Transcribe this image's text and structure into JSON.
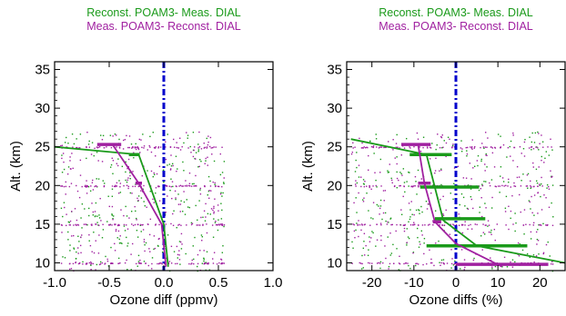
{
  "chart_data": [
    {
      "type": "scatter",
      "legend": [
        {
          "label": "Reconst. POAM3- Meas. DIAL",
          "color": "#1a9a1a"
        },
        {
          "label": "Meas. POAM3- Reconst. DIAL",
          "color": "#a020a0"
        }
      ],
      "xlabel": "Ozone diff (ppmv)",
      "ylabel": "Alt. (km)",
      "xlim": [
        -1.0,
        1.0
      ],
      "ylim": [
        9,
        36
      ],
      "xticks": [
        -1.0,
        -0.5,
        0.0,
        0.5,
        1.0
      ],
      "xtick_labels": [
        "-1.0",
        "-0.5",
        "0.0",
        "0.5",
        "1.0"
      ],
      "yticks": [
        10,
        15,
        20,
        25,
        30,
        35
      ],
      "ytick_labels": [
        "10",
        "15",
        "20",
        "25",
        "30",
        "35"
      ],
      "zero_line": 0.0,
      "series": [
        {
          "name": "Reconst. POAM3- Meas. DIAL",
          "color": "#1a9a1a",
          "profile": [
            {
              "x": 0.04,
              "y": 9.5
            },
            {
              "x": 0.0,
              "y": 15
            },
            {
              "x": -0.23,
              "y": 24
            },
            {
              "x": -1.0,
              "y": 25
            }
          ],
          "errorbars": [
            {
              "y": 24,
              "x": -0.27,
              "half": 0.05
            }
          ],
          "scatter_x_range": [
            -0.95,
            0.55
          ],
          "scatter_y_range": [
            9,
            27
          ]
        },
        {
          "name": "Meas. POAM3- Reconst. DIAL",
          "color": "#a020a0",
          "profile": [
            {
              "x": 0.02,
              "y": 9.5
            },
            {
              "x": -0.02,
              "y": 15
            },
            {
              "x": -0.23,
              "y": 20.3
            },
            {
              "x": -0.47,
              "y": 25.3
            }
          ],
          "errorbars": [
            {
              "y": 25.3,
              "x": -0.5,
              "half": 0.11
            },
            {
              "y": 20.3,
              "x": -0.23,
              "half": 0.03
            }
          ],
          "scatter_x_range": [
            -0.95,
            0.55
          ],
          "scatter_y_range": [
            9,
            27
          ],
          "dense_rows": [
            10,
            15,
            20,
            25
          ]
        }
      ]
    },
    {
      "type": "scatter",
      "legend": [
        {
          "label": "Reconst. POAM3- Meas. DIAL",
          "color": "#1a9a1a"
        },
        {
          "label": "Meas. POAM3- Reconst. DIAL",
          "color": "#a020a0"
        }
      ],
      "xlabel": "Ozone diffs (%)",
      "ylabel": "Alt. (km)",
      "xlim": [
        -26,
        26
      ],
      "ylim": [
        9,
        36
      ],
      "xticks": [
        -20,
        -10,
        0,
        10,
        20
      ],
      "xtick_labels": [
        "-20",
        "-10",
        "0",
        "10",
        "20"
      ],
      "yticks": [
        10,
        15,
        20,
        25,
        30,
        35
      ],
      "ytick_labels": [
        "10",
        "15",
        "20",
        "25",
        "30",
        "35"
      ],
      "zero_line": 0,
      "series": [
        {
          "name": "Reconst. POAM3- Meas. DIAL",
          "color": "#1a9a1a",
          "profile": [
            {
              "x": 26,
              "y": 10
            },
            {
              "x": 5,
              "y": 12.2
            },
            {
              "x": -3,
              "y": 15.5
            },
            {
              "x": -7,
              "y": 24
            },
            {
              "x": -25,
              "y": 26
            }
          ],
          "errorbars": [
            {
              "y": 24,
              "x": -6,
              "half": 5
            },
            {
              "y": 19.8,
              "x": -1.5,
              "half": 7
            },
            {
              "y": 15.7,
              "x": 1,
              "half": 6
            },
            {
              "y": 12.2,
              "x": 5,
              "half": 12
            }
          ],
          "scatter_x_range": [
            -25,
            23
          ],
          "scatter_y_range": [
            9,
            27
          ]
        },
        {
          "name": "Meas. POAM3- Reconst. DIAL",
          "color": "#a020a0",
          "profile": [
            {
              "x": 11,
              "y": 9.5
            },
            {
              "x": 0,
              "y": 12.5
            },
            {
              "x": -5,
              "y": 15.3
            },
            {
              "x": -7.5,
              "y": 20.3
            },
            {
              "x": -9,
              "y": 25.3
            }
          ],
          "errorbars": [
            {
              "y": 25.3,
              "x": -9.5,
              "half": 3.5
            },
            {
              "y": 20.3,
              "x": -7.5,
              "half": 1.5
            },
            {
              "y": 15.3,
              "x": -4.5,
              "half": 1
            },
            {
              "y": 9.8,
              "x": 11,
              "half": 11
            }
          ],
          "scatter_x_range": [
            -25,
            23
          ],
          "scatter_y_range": [
            9,
            27
          ],
          "dense_rows": [
            10,
            15,
            20,
            25
          ]
        }
      ]
    }
  ]
}
